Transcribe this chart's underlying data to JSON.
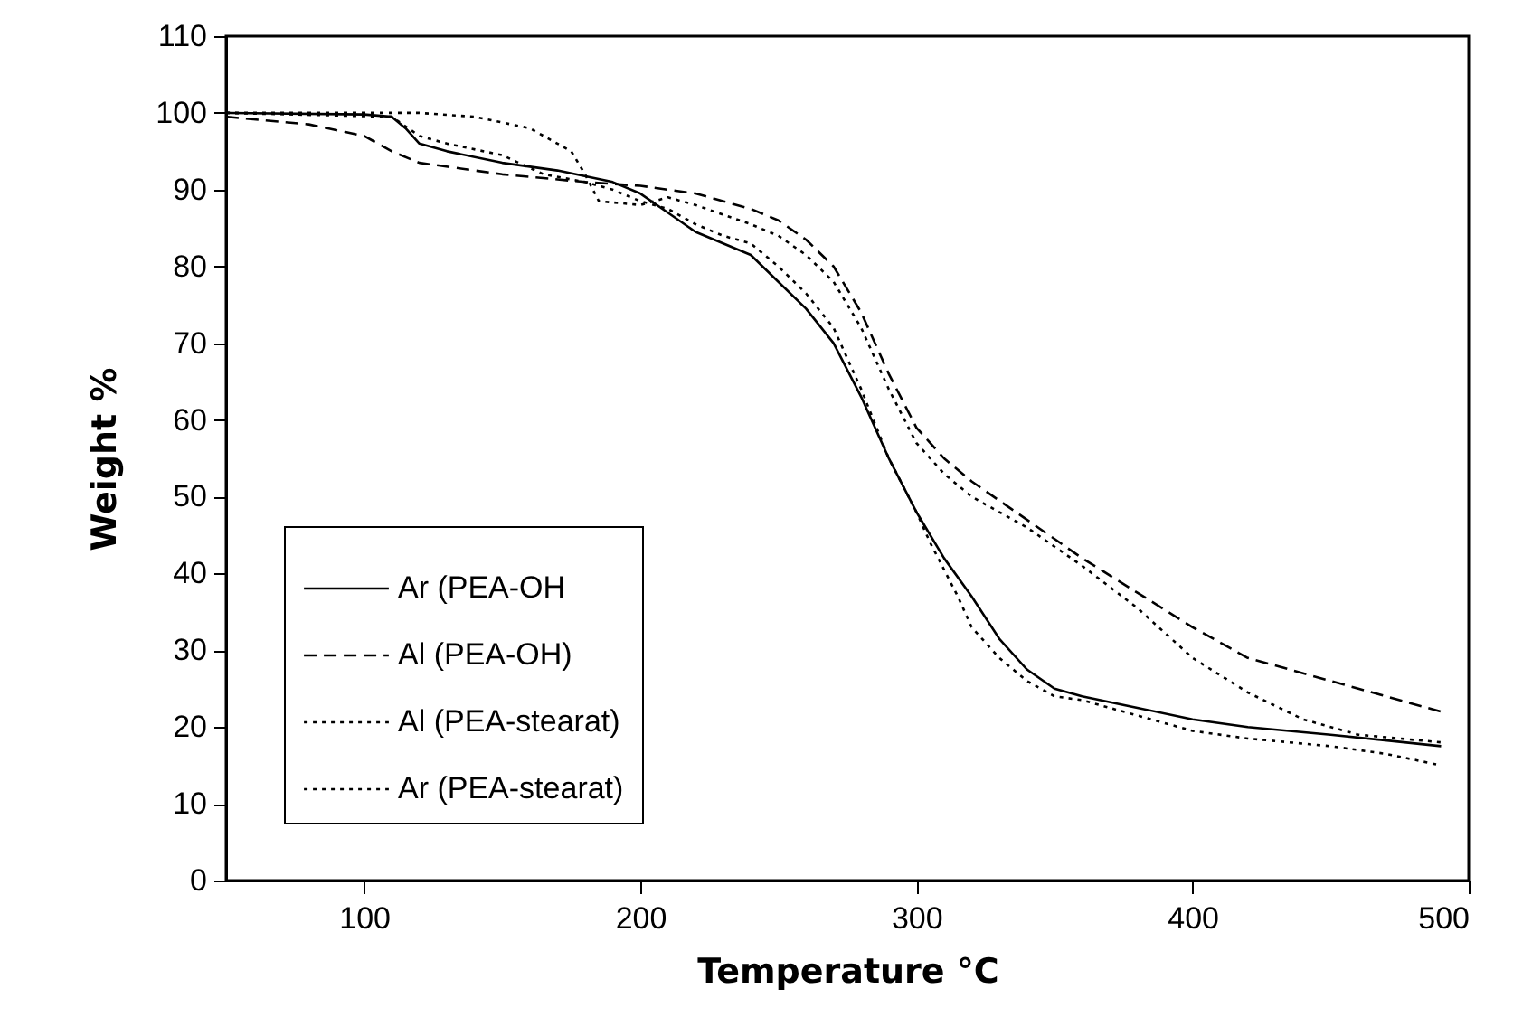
{
  "chart_data": {
    "type": "line",
    "xlabel": "Temperature °C",
    "ylabel": "Weight %",
    "xlim": [
      50,
      500
    ],
    "ylim": [
      0,
      110
    ],
    "xticks": [
      100,
      200,
      300,
      400,
      500
    ],
    "yticks": [
      0,
      10,
      20,
      30,
      40,
      50,
      60,
      70,
      80,
      90,
      100,
      110
    ],
    "grid": false,
    "legend": "bottom left",
    "marker": "none",
    "series": [
      {
        "name": "Ar (PEA-OH",
        "color": "#000000",
        "line_style": "solid",
        "x": [
          50,
          100,
          110,
          115,
          120,
          130,
          150,
          170,
          190,
          200,
          210,
          220,
          230,
          240,
          250,
          260,
          270,
          280,
          290,
          300,
          310,
          320,
          330,
          340,
          350,
          360,
          380,
          400,
          420,
          450,
          490
        ],
        "values": [
          100,
          99.8,
          99.5,
          98,
          96,
          95,
          93.5,
          92.5,
          91,
          89.5,
          87,
          84.5,
          83,
          81.5,
          78,
          74.5,
          70,
          63,
          55,
          48,
          42,
          37,
          31.5,
          27.5,
          25,
          24,
          22.5,
          21,
          20,
          19,
          17.5
        ]
      },
      {
        "name": "Al (PEA-OH)",
        "color": "#000000",
        "line_style": "dashed",
        "x": [
          50,
          80,
          100,
          110,
          120,
          150,
          180,
          200,
          220,
          240,
          250,
          260,
          270,
          280,
          290,
          300,
          310,
          320,
          340,
          360,
          380,
          400,
          420,
          440,
          460,
          490
        ],
        "values": [
          99.5,
          98.5,
          97,
          95,
          93.5,
          92,
          91,
          90.5,
          89.5,
          87.5,
          86,
          83.5,
          80,
          74,
          66,
          59,
          55,
          52,
          47,
          42,
          37.5,
          33,
          29,
          27,
          25,
          22
        ]
      },
      {
        "name": "Al (PEA-stearat)",
        "color": "#000000",
        "line_style": "dotted",
        "x": [
          50,
          100,
          120,
          140,
          160,
          175,
          180,
          185,
          200,
          210,
          220,
          240,
          250,
          260,
          270,
          280,
          290,
          300,
          310,
          320,
          340,
          360,
          380,
          400,
          420,
          440,
          460,
          490
        ],
        "values": [
          100,
          100,
          100,
          99.5,
          98,
          95,
          92,
          88.5,
          88,
          89,
          88,
          85.5,
          84,
          81.5,
          78,
          72,
          64,
          57,
          53,
          50,
          46,
          41,
          35.5,
          29,
          24.5,
          21,
          19,
          18
        ]
      },
      {
        "name": "Ar (PEA-stearat)",
        "color": "#000000",
        "line_style": "dotted",
        "x": [
          50,
          110,
          120,
          130,
          150,
          165,
          180,
          190,
          200,
          210,
          220,
          230,
          240,
          250,
          260,
          270,
          280,
          290,
          300,
          305,
          315,
          320,
          330,
          340,
          350,
          360,
          380,
          400,
          420,
          450,
          470,
          490
        ],
        "values": [
          100,
          99.5,
          97,
          96,
          94.5,
          92,
          91,
          90,
          88.5,
          87.5,
          85.5,
          84,
          83,
          80,
          76.5,
          72,
          64,
          55,
          48,
          44,
          37,
          33,
          29,
          26,
          24,
          23.5,
          21.5,
          19.5,
          18.5,
          17.5,
          16.5,
          15
        ]
      }
    ]
  }
}
